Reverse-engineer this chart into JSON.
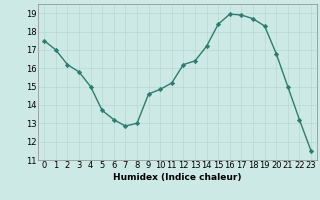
{
  "x": [
    0,
    1,
    2,
    3,
    4,
    5,
    6,
    7,
    8,
    9,
    10,
    11,
    12,
    13,
    14,
    15,
    16,
    17,
    18,
    19,
    20,
    21,
    22,
    23
  ],
  "y": [
    17.5,
    17.0,
    16.2,
    15.8,
    15.0,
    13.7,
    13.2,
    12.85,
    13.0,
    14.6,
    14.85,
    15.2,
    16.2,
    16.4,
    17.2,
    18.4,
    18.95,
    18.9,
    18.7,
    18.3,
    16.8,
    15.0,
    13.2,
    11.5
  ],
  "line_color": "#2d7d6e",
  "marker": "D",
  "marker_size": 2.2,
  "bg_color": "#cce9e5",
  "grid_color": "#b8d8d4",
  "xlabel": "Humidex (Indice chaleur)",
  "ylim": [
    11,
    19.5
  ],
  "xlim": [
    -0.5,
    23.5
  ],
  "yticks": [
    11,
    12,
    13,
    14,
    15,
    16,
    17,
    18,
    19
  ],
  "xticks": [
    0,
    1,
    2,
    3,
    4,
    5,
    6,
    7,
    8,
    9,
    10,
    11,
    12,
    13,
    14,
    15,
    16,
    17,
    18,
    19,
    20,
    21,
    22,
    23
  ],
  "xlabel_fontsize": 6.5,
  "tick_fontsize": 6,
  "line_width": 1.0
}
